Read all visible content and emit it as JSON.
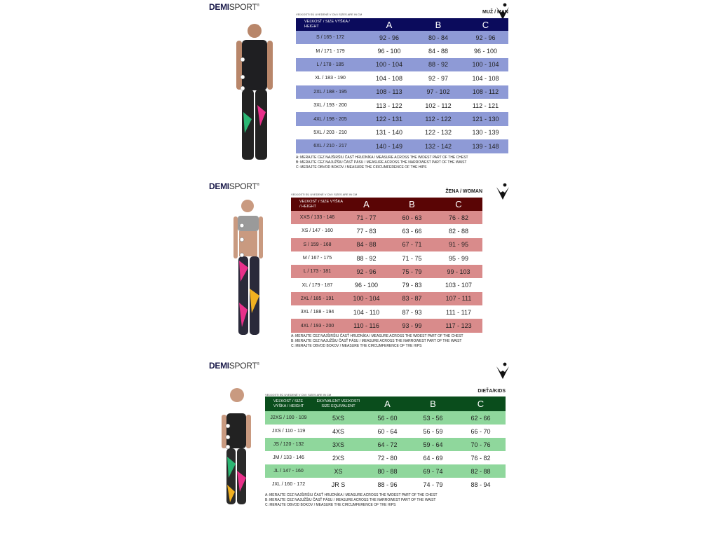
{
  "brand": {
    "logo_text_bold": "DEMI",
    "logo_text": "SPORT",
    "logo_mark": "®"
  },
  "colors": {
    "man_header": "#0b0b5c",
    "man_row": "#8e9ad6",
    "woman_header": "#5a0505",
    "woman_row": "#d98b8b",
    "kids_header": "#0a4d1c",
    "kids_row": "#8fd79c"
  },
  "measures": [
    "A: merajte cez najširšiu časť hrudníka / measure across the widest part of the chest",
    "B: merajte cez najužšiu časť pásu / measure across the narrowest part of the waist",
    "C: merajte obvod bokov / measure the circumference of the hips"
  ],
  "man": {
    "note": "Veľkosti sú uvedené v cm / sizes are in cm",
    "gender": "Muž / Man",
    "headers": [
      "Veľkosť / size výška / height",
      "A",
      "B",
      "C"
    ],
    "rows": [
      [
        "S / 165 - 172",
        "92 - 96",
        "80 - 84",
        "92 - 96"
      ],
      [
        "M / 171 - 179",
        "96 - 100",
        "84 - 88",
        "96 - 100"
      ],
      [
        "L / 178 - 185",
        "100 - 104",
        "88 - 92",
        "100 - 104"
      ],
      [
        "XL / 183 - 190",
        "104 - 108",
        "92 - 97",
        "104 - 108"
      ],
      [
        "2XL / 188 - 195",
        "108 - 113",
        "97 - 102",
        "108 - 112"
      ],
      [
        "3XL / 193 - 200",
        "113 - 122",
        "102 - 112",
        "112 - 121"
      ],
      [
        "4XL / 198 - 205",
        "122 - 131",
        "112 - 122",
        "121 - 130"
      ],
      [
        "5XL / 203 - 210",
        "131 - 140",
        "122 - 132",
        "130 - 139"
      ],
      [
        "6XL / 210 - 217",
        "140 - 149",
        "132 - 142",
        "139 - 148"
      ]
    ]
  },
  "woman": {
    "note": "Veľkosti sú uvedené v cm / sizes are in cm",
    "gender": "Žena / Woman",
    "headers": [
      "Veľkosť / size výška / height",
      "A",
      "B",
      "C"
    ],
    "rows": [
      [
        "XXS / 133 - 146",
        "71 - 77",
        "60 - 63",
        "76 - 82"
      ],
      [
        "XS / 147 - 160",
        "77 - 83",
        "63 - 66",
        "82 - 88"
      ],
      [
        "S / 159 - 168",
        "84 - 88",
        "67 - 71",
        "91 - 95"
      ],
      [
        "M / 167 - 175",
        "88 - 92",
        "71 - 75",
        "95 - 99"
      ],
      [
        "L / 173 - 181",
        "92 - 96",
        "75 - 79",
        "99 - 103"
      ],
      [
        "XL / 179 - 187",
        "96 - 100",
        "79 - 83",
        "103 - 107"
      ],
      [
        "2XL / 185 - 191",
        "100 - 104",
        "83 - 87",
        "107 - 111"
      ],
      [
        "3XL / 188 - 194",
        "104 - 110",
        "87 - 93",
        "111 - 117"
      ],
      [
        "4XL / 193 - 200",
        "110 - 116",
        "93 - 99",
        "117 - 123"
      ]
    ]
  },
  "kids": {
    "note": "Veľkosti sú uvedené v cm / sizes are in cm",
    "gender": "Dieťa/Kids",
    "headers": [
      "Veľkosť / size výška / height",
      "Ekvivalent veľkosti size equivalent",
      "A",
      "B",
      "C"
    ],
    "rows": [
      [
        "J2XS / 100 - 109",
        "5XS",
        "56 - 60",
        "53 - 56",
        "62 - 66"
      ],
      [
        "JXS / 110 - 119",
        "4XS",
        "60 - 64",
        "56 - 59",
        "66 - 70"
      ],
      [
        "JS / 120 - 132",
        "3XS",
        "64 - 72",
        "59 - 64",
        "70 - 76"
      ],
      [
        "JM / 133 - 146",
        "2XS",
        "72 - 80",
        "64 - 69",
        "76 - 82"
      ],
      [
        "JL / 147 - 160",
        "XS",
        "80 - 88",
        "69 - 74",
        "82 - 88"
      ],
      [
        "JXL / 160 - 172",
        "JR S",
        "88 - 96",
        "74 - 79",
        "88 - 94"
      ]
    ]
  }
}
